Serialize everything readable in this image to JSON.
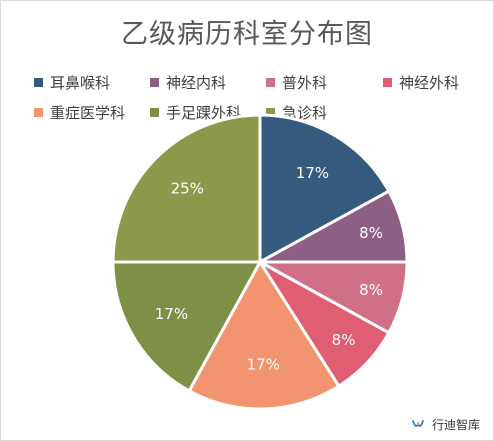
{
  "chart_data": {
    "type": "pie",
    "title": "乙级病历科室分布图",
    "categories": [
      "耳鼻喉科",
      "神经内科",
      "普外科",
      "神经外科",
      "重症医学科",
      "手足踝外科",
      "急诊科"
    ],
    "values": [
      17,
      8,
      8,
      8,
      17,
      17,
      25
    ],
    "labels": [
      "17%",
      "8%",
      "8%",
      "8%",
      "17%",
      "17%",
      "25%"
    ],
    "colors": [
      "#365a7d",
      "#8e5f84",
      "#d07088",
      "#df5e71",
      "#f29470",
      "#7d9046",
      "#8a9a4a"
    ],
    "legend_position": "top"
  },
  "watermark": {
    "text": "行迪智库",
    "icon": "wechat-channel-icon"
  }
}
